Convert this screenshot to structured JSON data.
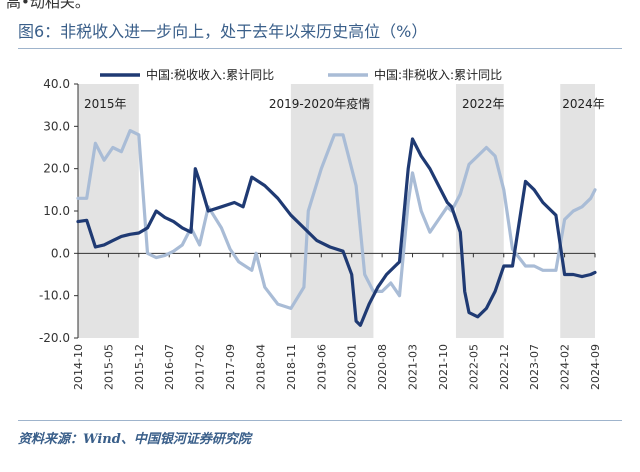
{
  "page": {
    "top_fragment": "高•动相关。",
    "figure_title": "图6：非税收入进一步向上，处于去年以来历史高位（%）",
    "source": "资料来源：Wind、中国银河证券研究院"
  },
  "chart_data": {
    "type": "line",
    "title": "图6：非税收入进一步向上，处于去年以来历史高位（%）",
    "xlabel": "",
    "ylabel": "",
    "ylim": [
      -20,
      40
    ],
    "yticks": [
      -20,
      -10,
      0,
      10,
      20,
      30,
      40
    ],
    "ytick_labels": [
      "-20.0",
      "-10.0",
      "0.0",
      "10.0",
      "20.0",
      "30.0",
      "40.0"
    ],
    "xlim": [
      "2014-10",
      "2024-09"
    ],
    "xticks": [
      "2014-10",
      "2015-05",
      "2015-12",
      "2016-07",
      "2017-02",
      "2017-09",
      "2018-04",
      "2018-11",
      "2019-06",
      "2020-01",
      "2020-08",
      "2021-03",
      "2021-10",
      "2022-05",
      "2022-12",
      "2023-07",
      "2024-02",
      "2024-09"
    ],
    "legend_placement": "top",
    "grid": false,
    "colors": {
      "tax": "#1f3a73",
      "nontax": "#a9bcd6",
      "shade": "#e3e3e3",
      "axis": "#333333"
    },
    "shaded_periods": [
      {
        "label": "2015年",
        "start": "2014-10",
        "end": "2015-12"
      },
      {
        "label": "2019-2020年疫情",
        "start": "2018-11",
        "end": "2020-06"
      },
      {
        "label": "2022年",
        "start": "2022-01",
        "end": "2022-12"
      },
      {
        "label": "2024年",
        "start": "2024-01",
        "end": "2024-09"
      }
    ],
    "series": [
      {
        "name": "中国:税收收入:累计同比",
        "color": "#1f3a73",
        "points": [
          [
            "2014-10",
            7.5
          ],
          [
            "2014-12",
            7.8
          ],
          [
            "2015-02",
            1.5
          ],
          [
            "2015-04",
            2
          ],
          [
            "2015-06",
            3
          ],
          [
            "2015-08",
            4
          ],
          [
            "2015-10",
            4.5
          ],
          [
            "2015-12",
            4.8
          ],
          [
            "2016-02",
            6
          ],
          [
            "2016-04",
            10
          ],
          [
            "2016-06",
            8.5
          ],
          [
            "2016-08",
            7.5
          ],
          [
            "2016-10",
            6
          ],
          [
            "2016-12",
            5
          ],
          [
            "2017-01",
            20
          ],
          [
            "2017-02",
            17
          ],
          [
            "2017-04",
            10
          ],
          [
            "2017-07",
            11
          ],
          [
            "2017-10",
            12
          ],
          [
            "2017-12",
            11
          ],
          [
            "2018-02",
            18
          ],
          [
            "2018-05",
            16
          ],
          [
            "2018-08",
            13
          ],
          [
            "2018-11",
            9
          ],
          [
            "2019-02",
            6
          ],
          [
            "2019-05",
            3
          ],
          [
            "2019-08",
            1.5
          ],
          [
            "2019-11",
            0.5
          ],
          [
            "2020-01",
            -5
          ],
          [
            "2020-02",
            -16
          ],
          [
            "2020-03",
            -17
          ],
          [
            "2020-05",
            -12
          ],
          [
            "2020-07",
            -8
          ],
          [
            "2020-09",
            -5
          ],
          [
            "2020-11",
            -3
          ],
          [
            "2020-12",
            -2
          ],
          [
            "2021-02",
            20
          ],
          [
            "2021-03",
            27
          ],
          [
            "2021-05",
            23
          ],
          [
            "2021-07",
            20
          ],
          [
            "2021-09",
            16
          ],
          [
            "2021-11",
            12
          ],
          [
            "2021-12",
            11
          ],
          [
            "2022-02",
            5
          ],
          [
            "2022-03",
            -9
          ],
          [
            "2022-04",
            -14
          ],
          [
            "2022-06",
            -15
          ],
          [
            "2022-08",
            -13
          ],
          [
            "2022-10",
            -9
          ],
          [
            "2022-12",
            -3
          ],
          [
            "2023-02",
            -3
          ],
          [
            "2023-05",
            17
          ],
          [
            "2023-07",
            15
          ],
          [
            "2023-09",
            12
          ],
          [
            "2023-11",
            10
          ],
          [
            "2023-12",
            9
          ],
          [
            "2024-02",
            -5
          ],
          [
            "2024-04",
            -5
          ],
          [
            "2024-06",
            -5.5
          ],
          [
            "2024-08",
            -5
          ],
          [
            "2024-09",
            -4.5
          ]
        ]
      },
      {
        "name": "中国:非税收入:累计同比",
        "color": "#a9bcd6",
        "points": [
          [
            "2014-10",
            13
          ],
          [
            "2014-12",
            13
          ],
          [
            "2015-02",
            26
          ],
          [
            "2015-04",
            22
          ],
          [
            "2015-06",
            25
          ],
          [
            "2015-08",
            24
          ],
          [
            "2015-10",
            29
          ],
          [
            "2015-12",
            28
          ],
          [
            "2016-02",
            0
          ],
          [
            "2016-04",
            -1
          ],
          [
            "2016-06",
            -0.5
          ],
          [
            "2016-08",
            0.5
          ],
          [
            "2016-10",
            2
          ],
          [
            "2016-12",
            6
          ],
          [
            "2017-01",
            4
          ],
          [
            "2017-02",
            2
          ],
          [
            "2017-04",
            11
          ],
          [
            "2017-07",
            6
          ],
          [
            "2017-09",
            1
          ],
          [
            "2017-11",
            -2
          ],
          [
            "2018-02",
            -4
          ],
          [
            "2018-03",
            0
          ],
          [
            "2018-05",
            -8
          ],
          [
            "2018-08",
            -12
          ],
          [
            "2018-11",
            -13
          ],
          [
            "2019-02",
            -8
          ],
          [
            "2019-03",
            10
          ],
          [
            "2019-06",
            20
          ],
          [
            "2019-09",
            28
          ],
          [
            "2019-11",
            28
          ],
          [
            "2020-02",
            16
          ],
          [
            "2020-04",
            -5
          ],
          [
            "2020-06",
            -9
          ],
          [
            "2020-08",
            -9
          ],
          [
            "2020-10",
            -7
          ],
          [
            "2020-12",
            -10
          ],
          [
            "2021-02",
            12
          ],
          [
            "2021-03",
            19
          ],
          [
            "2021-05",
            10
          ],
          [
            "2021-07",
            5
          ],
          [
            "2021-09",
            8
          ],
          [
            "2021-11",
            11
          ],
          [
            "2021-12",
            10
          ],
          [
            "2022-02",
            14
          ],
          [
            "2022-04",
            21
          ],
          [
            "2022-06",
            23
          ],
          [
            "2022-08",
            25
          ],
          [
            "2022-10",
            23
          ],
          [
            "2022-12",
            15
          ],
          [
            "2023-02",
            1
          ],
          [
            "2023-05",
            -3
          ],
          [
            "2023-07",
            -3
          ],
          [
            "2023-09",
            -4
          ],
          [
            "2023-11",
            -4
          ],
          [
            "2023-12",
            -4
          ],
          [
            "2024-02",
            8
          ],
          [
            "2024-04",
            10
          ],
          [
            "2024-06",
            11
          ],
          [
            "2024-08",
            13
          ],
          [
            "2024-09",
            15
          ]
        ]
      }
    ]
  }
}
